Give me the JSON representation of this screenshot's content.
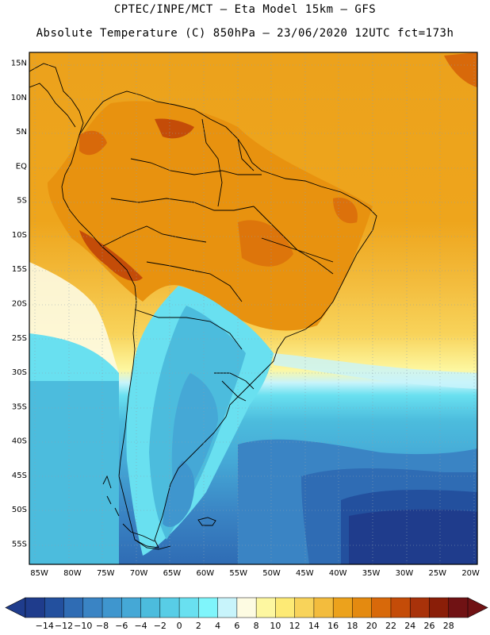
{
  "header": {
    "line1": "CPTEC/INPE/MCT –  Eta Model 15km – GFS",
    "line2": "Absolute Temperature (C) 850hPa – 23/06/2020 12UTC fct=173h"
  },
  "axes": {
    "lat_labels": [
      "15N",
      "10N",
      "5N",
      "EQ",
      "5S",
      "10S",
      "15S",
      "20S",
      "25S",
      "30S",
      "35S",
      "40S",
      "45S",
      "50S",
      "55S"
    ],
    "lat_values": [
      15,
      10,
      5,
      0,
      -5,
      -10,
      -15,
      -20,
      -25,
      -30,
      -35,
      -40,
      -45,
      -50,
      -55
    ],
    "lon_labels": [
      "85W",
      "80W",
      "75W",
      "70W",
      "65W",
      "60W",
      "55W",
      "50W",
      "45W",
      "40W",
      "35W",
      "30W",
      "25W",
      "20W"
    ],
    "lon_values": [
      -85,
      -80,
      -75,
      -70,
      -65,
      -60,
      -55,
      -50,
      -45,
      -40,
      -35,
      -30,
      -25,
      -20
    ],
    "lat_range": [
      -58,
      16.5
    ],
    "lon_range": [
      -86.5,
      -19
    ]
  },
  "colorbar": {
    "labels": [
      "-14",
      "-12",
      "-10",
      "-8",
      "-6",
      "-4",
      "-2",
      "0",
      "2",
      "4",
      "6",
      "8",
      "10",
      "12",
      "14",
      "16",
      "18",
      "20",
      "22",
      "24",
      "26",
      "28"
    ],
    "colors": [
      "#1f3c8c",
      "#23509e",
      "#2f6cb4",
      "#3a84c4",
      "#3f96ce",
      "#45a8d6",
      "#4cbcdd",
      "#58cde6",
      "#69e0f0",
      "#7ff5fb",
      "#c8f4fb",
      "#fdfbe2",
      "#fdf7a0",
      "#fdea75",
      "#f8d35a",
      "#f3bc3d",
      "#eca21c",
      "#e48a10",
      "#d8690a",
      "#c44c08",
      "#a8320a",
      "#8a1e08",
      "#701214"
    ]
  },
  "map_colors": {
    "ocean_warm": "#eea51c",
    "land_warm": "#e8920f",
    "land_hot": "#d8690a",
    "highlands_hot": "#c44c08",
    "cold_band": "#4cbcdd",
    "deep_cold": "#23509e"
  }
}
